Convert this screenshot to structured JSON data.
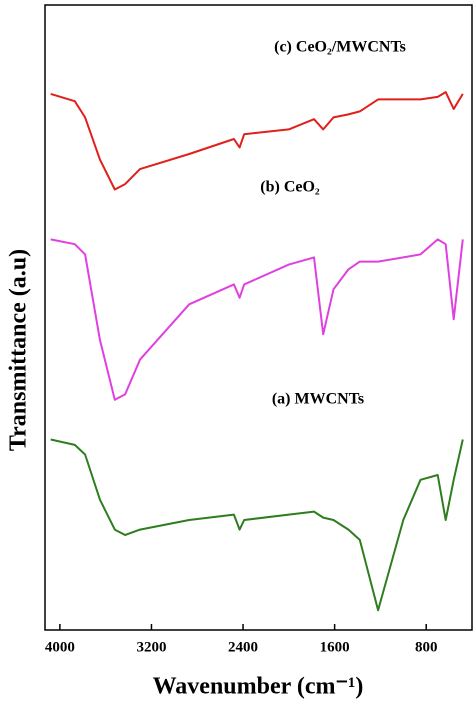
{
  "chart_data": {
    "type": "line",
    "x_label": "Wavenumber (cm⁻¹)",
    "y_label": "Transmittance (a.u)",
    "annotations": [
      "(c) CeO₂/MWCNTs",
      "(b) CeO₂",
      "(a) MWCNTs"
    ],
    "x": [
      4080,
      3870,
      3780,
      3650,
      3520,
      3430,
      3300,
      2870,
      2480,
      2430,
      2390,
      2000,
      1780,
      1700,
      1610,
      1480,
      1380,
      1220,
      1000,
      850,
      700,
      630,
      560,
      480
    ],
    "xlim": [
      4130,
      400
    ],
    "xticks": [
      4000,
      3200,
      2400,
      1600,
      800
    ],
    "ylim": [
      0,
      104
    ],
    "series": [
      {
        "name": "(c) CeO₂/MWCNTs",
        "color": "#e0201b",
        "values": [
          89.2,
          88,
          85.3,
          78.3,
          73.3,
          74.2,
          76.7,
          79.2,
          81.7,
          80.3,
          82.5,
          83.3,
          85,
          83.3,
          85.3,
          85.8,
          86.3,
          88.3,
          88.3,
          88.3,
          88.7,
          89.5,
          86.7,
          89.2
        ]
      },
      {
        "name": "(b) CeO₂",
        "color": "#e040e0",
        "values": [
          65,
          64.2,
          62.5,
          48.3,
          38.3,
          39.2,
          45,
          54.2,
          57.5,
          55.3,
          57.5,
          60.8,
          62,
          49.2,
          56.7,
          60,
          61.3,
          61.3,
          62,
          62.5,
          65,
          64.2,
          51.7,
          65
        ]
      },
      {
        "name": "(a) MWCNTs",
        "color": "#2e7d1e",
        "values": [
          31.7,
          30.8,
          29.2,
          21.7,
          16.7,
          15.8,
          16.7,
          18.3,
          19.2,
          16.7,
          18.3,
          19.2,
          19.7,
          18.7,
          18.3,
          16.7,
          15,
          3.3,
          18.3,
          25,
          25.8,
          18.3,
          25,
          31.7
        ]
      }
    ]
  }
}
